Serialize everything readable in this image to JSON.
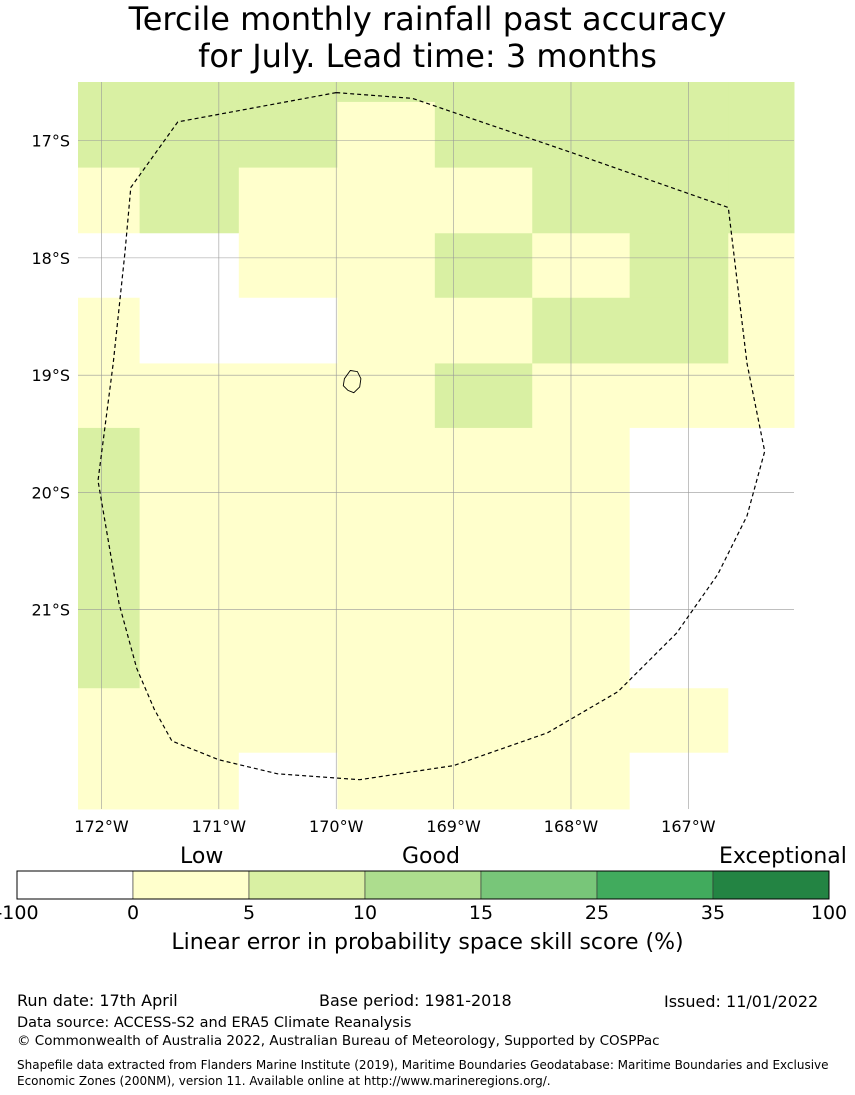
{
  "title_line1": "Tercile monthly rainfall past accuracy",
  "title_line2": "for July. Lead time: 3 months",
  "map": {
    "lon_range": [
      -172.2,
      -166.1
    ],
    "lat_range": [
      -22.7,
      -16.5
    ],
    "lat_ticks": [
      {
        "value": -17,
        "label": "17°S"
      },
      {
        "value": -18,
        "label": "18°S"
      },
      {
        "value": -19,
        "label": "19°S"
      },
      {
        "value": -20,
        "label": "20°S"
      },
      {
        "value": -21,
        "label": "21°S"
      }
    ],
    "lon_ticks": [
      {
        "value": -172,
        "label": "172°W"
      },
      {
        "value": -171,
        "label": "171°W"
      },
      {
        "value": -170,
        "label": "170°W"
      },
      {
        "value": -169,
        "label": "169°W"
      },
      {
        "value": -168,
        "label": "168°W"
      },
      {
        "value": -167,
        "label": "167°W"
      }
    ],
    "cell_colors": {
      "W": "#ffffff",
      "Y": "#ffffcc",
      "G": "#d9f0a3",
      "H": "#addd8e"
    },
    "cells": [
      {
        "lon": [
          -172.2,
          -171.675
        ],
        "lat": [
          -16.5,
          -17.23
        ],
        "c": "G"
      },
      {
        "lon": [
          -171.675,
          -170.83
        ],
        "lat": [
          -16.5,
          -17.23
        ],
        "c": "G"
      },
      {
        "lon": [
          -170.83,
          -169.99
        ],
        "lat": [
          -16.5,
          -17.23
        ],
        "c": "G"
      },
      {
        "lon": [
          -169.99,
          -169.16
        ],
        "lat": [
          -16.5,
          -16.67
        ],
        "c": "G"
      },
      {
        "lon": [
          -169.99,
          -169.16
        ],
        "lat": [
          -16.67,
          -17.23
        ],
        "c": "Y"
      },
      {
        "lon": [
          -169.16,
          -168.33
        ],
        "lat": [
          -16.5,
          -17.23
        ],
        "c": "G"
      },
      {
        "lon": [
          -168.33,
          -167.5
        ],
        "lat": [
          -16.5,
          -17.23
        ],
        "c": "G"
      },
      {
        "lon": [
          -167.5,
          -166.66
        ],
        "lat": [
          -16.5,
          -17.23
        ],
        "c": "G"
      },
      {
        "lon": [
          -166.66,
          -166.1
        ],
        "lat": [
          -16.5,
          -17.23
        ],
        "c": "G"
      },
      {
        "lon": [
          -172.2,
          -171.675
        ],
        "lat": [
          -17.23,
          -17.79
        ],
        "c": "Y"
      },
      {
        "lon": [
          -171.675,
          -170.83
        ],
        "lat": [
          -17.23,
          -17.79
        ],
        "c": "G"
      },
      {
        "lon": [
          -170.83,
          -169.99
        ],
        "lat": [
          -17.23,
          -17.79
        ],
        "c": "Y"
      },
      {
        "lon": [
          -169.99,
          -169.16
        ],
        "lat": [
          -17.23,
          -17.79
        ],
        "c": "Y"
      },
      {
        "lon": [
          -169.16,
          -168.33
        ],
        "lat": [
          -17.23,
          -17.79
        ],
        "c": "Y"
      },
      {
        "lon": [
          -168.33,
          -167.5
        ],
        "lat": [
          -17.23,
          -17.79
        ],
        "c": "G"
      },
      {
        "lon": [
          -167.5,
          -166.66
        ],
        "lat": [
          -17.23,
          -17.79
        ],
        "c": "G"
      },
      {
        "lon": [
          -166.66,
          -166.1
        ],
        "lat": [
          -17.23,
          -17.79
        ],
        "c": "G"
      },
      {
        "lon": [
          -172.2,
          -171.675
        ],
        "lat": [
          -17.79,
          -18.34
        ],
        "c": "W"
      },
      {
        "lon": [
          -171.675,
          -170.83
        ],
        "lat": [
          -17.79,
          -18.34
        ],
        "c": "W"
      },
      {
        "lon": [
          -170.83,
          -169.99
        ],
        "lat": [
          -17.79,
          -18.34
        ],
        "c": "Y"
      },
      {
        "lon": [
          -169.99,
          -169.16
        ],
        "lat": [
          -17.79,
          -18.34
        ],
        "c": "Y"
      },
      {
        "lon": [
          -169.16,
          -168.33
        ],
        "lat": [
          -17.79,
          -18.34
        ],
        "c": "G"
      },
      {
        "lon": [
          -168.33,
          -167.5
        ],
        "lat": [
          -17.79,
          -18.34
        ],
        "c": "Y"
      },
      {
        "lon": [
          -167.5,
          -166.66
        ],
        "lat": [
          -17.79,
          -18.34
        ],
        "c": "G"
      },
      {
        "lon": [
          -166.66,
          -166.1
        ],
        "lat": [
          -17.79,
          -18.34
        ],
        "c": "Y"
      },
      {
        "lon": [
          -172.2,
          -171.675
        ],
        "lat": [
          -18.34,
          -18.9
        ],
        "c": "Y"
      },
      {
        "lon": [
          -171.675,
          -170.83
        ],
        "lat": [
          -18.34,
          -18.9
        ],
        "c": "W"
      },
      {
        "lon": [
          -170.83,
          -169.99
        ],
        "lat": [
          -18.34,
          -18.9
        ],
        "c": "W"
      },
      {
        "lon": [
          -169.99,
          -169.16
        ],
        "lat": [
          -18.34,
          -18.9
        ],
        "c": "Y"
      },
      {
        "lon": [
          -169.16,
          -168.33
        ],
        "lat": [
          -18.34,
          -18.9
        ],
        "c": "Y"
      },
      {
        "lon": [
          -168.33,
          -167.5
        ],
        "lat": [
          -18.34,
          -18.9
        ],
        "c": "G"
      },
      {
        "lon": [
          -167.5,
          -166.66
        ],
        "lat": [
          -18.34,
          -18.9
        ],
        "c": "G"
      },
      {
        "lon": [
          -166.66,
          -166.1
        ],
        "lat": [
          -18.34,
          -18.9
        ],
        "c": "Y"
      },
      {
        "lon": [
          -172.2,
          -171.675
        ],
        "lat": [
          -18.9,
          -19.45
        ],
        "c": "Y"
      },
      {
        "lon": [
          -171.675,
          -169.16
        ],
        "lat": [
          -18.9,
          -19.45
        ],
        "c": "Y"
      },
      {
        "lon": [
          -169.16,
          -168.33
        ],
        "lat": [
          -18.9,
          -19.45
        ],
        "c": "G"
      },
      {
        "lon": [
          -168.33,
          -166.1
        ],
        "lat": [
          -18.9,
          -19.45
        ],
        "c": "Y"
      },
      {
        "lon": [
          -172.2,
          -171.675
        ],
        "lat": [
          -19.45,
          -21.67
        ],
        "c": "G"
      },
      {
        "lon": [
          -171.675,
          -167.5
        ],
        "lat": [
          -19.45,
          -21.67
        ],
        "c": "Y"
      },
      {
        "lon": [
          -167.5,
          -166.1
        ],
        "lat": [
          -19.45,
          -21.67
        ],
        "c": "W"
      },
      {
        "lon": [
          -172.2,
          -167.5
        ],
        "lat": [
          -21.67,
          -22.22
        ],
        "c": "Y"
      },
      {
        "lon": [
          -167.5,
          -166.66
        ],
        "lat": [
          -21.67,
          -22.22
        ],
        "c": "Y"
      },
      {
        "lon": [
          -166.66,
          -166.1
        ],
        "lat": [
          -21.67,
          -22.22
        ],
        "c": "W"
      },
      {
        "lon": [
          -172.2,
          -170.83
        ],
        "lat": [
          -22.22,
          -22.7
        ],
        "c": "Y"
      },
      {
        "lon": [
          -170.83,
          -169.99
        ],
        "lat": [
          -22.22,
          -22.7
        ],
        "c": "W"
      },
      {
        "lon": [
          -169.99,
          -167.5
        ],
        "lat": [
          -22.22,
          -22.7
        ],
        "c": "Y"
      },
      {
        "lon": [
          -167.5,
          -166.1
        ],
        "lat": [
          -22.22,
          -22.7
        ],
        "c": "W"
      }
    ],
    "eez_boundary": [
      [
        -170.0,
        -16.59
      ],
      [
        -169.35,
        -16.64
      ],
      [
        -168.0,
        -17.1
      ],
      [
        -166.66,
        -17.57
      ],
      [
        -166.5,
        -18.9
      ],
      [
        -166.35,
        -19.65
      ],
      [
        -166.5,
        -20.2
      ],
      [
        -166.75,
        -20.7
      ],
      [
        -167.1,
        -21.2
      ],
      [
        -167.6,
        -21.7
      ],
      [
        -168.2,
        -22.05
      ],
      [
        -169.0,
        -22.33
      ],
      [
        -169.8,
        -22.45
      ],
      [
        -170.5,
        -22.4
      ],
      [
        -171.0,
        -22.28
      ],
      [
        -171.4,
        -22.12
      ],
      [
        -171.55,
        -21.85
      ],
      [
        -171.7,
        -21.5
      ],
      [
        -171.85,
        -20.95
      ],
      [
        -172.03,
        -19.9
      ],
      [
        -171.9,
        -18.9
      ],
      [
        -171.8,
        -17.95
      ],
      [
        -171.75,
        -17.4
      ],
      [
        -171.35,
        -16.84
      ],
      [
        -170.0,
        -16.59
      ]
    ],
    "island_outline": [
      [
        -169.88,
        -18.96
      ],
      [
        -169.82,
        -18.97
      ],
      [
        -169.79,
        -19.03
      ],
      [
        -169.8,
        -19.1
      ],
      [
        -169.85,
        -19.15
      ],
      [
        -169.9,
        -19.13
      ],
      [
        -169.94,
        -19.09
      ],
      [
        -169.93,
        -19.03
      ],
      [
        -169.88,
        -18.96
      ]
    ]
  },
  "colorbar": {
    "bins": [
      {
        "color": "#ffffff"
      },
      {
        "color": "#ffffcc"
      },
      {
        "color": "#d9f0a3"
      },
      {
        "color": "#addd8e"
      },
      {
        "color": "#78c679"
      },
      {
        "color": "#41ab5d"
      },
      {
        "color": "#238443"
      }
    ],
    "tick_labels": [
      "-100",
      "0",
      "5",
      "10",
      "15",
      "25",
      "35",
      "100"
    ],
    "category_labels": [
      "Low",
      "Good",
      "Exceptional"
    ],
    "caption": "Linear error in probability space skill score (%)"
  },
  "footer": {
    "run_date": "Run date: 17th April",
    "base_period": "Base period: 1981-2018",
    "issued": "Issued: 11/01/2022",
    "data_source": "Data source: ACCESS-S2 and ERA5 Climate Reanalysis",
    "copyright": "© Commonwealth of Australia 2022, Australian Bureau of Meteorology, Supported by COSPPac",
    "shapefile_line1": "Shapefile data extracted from Flanders Marine Institute (2019), Maritime Boundaries Geodatabase: Maritime Boundaries and Exclusive",
    "shapefile_line2": "Economic Zones (200NM), version 11. Available online at http://www.marineregions.org/."
  }
}
